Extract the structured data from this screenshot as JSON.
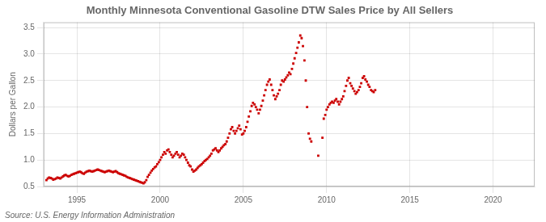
{
  "chart_data": {
    "type": "scatter",
    "title": "Monthly Minnesota Conventional Gasoline DTW Sales Price by All Sellers",
    "ylabel": "Dollars per Gallon",
    "source": "Source: U.S. Energy Information Administration",
    "color": "#cc0000",
    "marker": "square",
    "grid": true,
    "xlim": [
      1993.0,
      2022.5
    ],
    "ylim": [
      0.5,
      3.6
    ],
    "xticks": [
      1995,
      2000,
      2005,
      2010,
      2015,
      2020
    ],
    "yticks": [
      0.5,
      {
        "value": 1.0,
        "label": "1.0"
      },
      1.5,
      {
        "value": 2.0,
        "label": "2.0"
      },
      2.5,
      {
        "value": 3.0,
        "label": "3.0"
      },
      3.5
    ],
    "x": [
      1993.17,
      1993.25,
      1993.33,
      1993.42,
      1993.5,
      1993.58,
      1993.67,
      1993.75,
      1993.83,
      1993.92,
      1994.0,
      1994.08,
      1994.17,
      1994.25,
      1994.33,
      1994.42,
      1994.5,
      1994.58,
      1994.67,
      1994.75,
      1994.83,
      1994.92,
      1995.0,
      1995.08,
      1995.17,
      1995.25,
      1995.33,
      1995.42,
      1995.5,
      1995.58,
      1995.67,
      1995.75,
      1995.83,
      1995.92,
      1996.0,
      1996.08,
      1996.17,
      1996.25,
      1996.33,
      1996.42,
      1996.5,
      1996.58,
      1996.67,
      1996.75,
      1996.83,
      1996.92,
      1997.0,
      1997.08,
      1997.17,
      1997.25,
      1997.33,
      1997.42,
      1997.5,
      1997.58,
      1997.67,
      1997.75,
      1997.83,
      1997.92,
      1998.0,
      1998.08,
      1998.17,
      1998.25,
      1998.33,
      1998.42,
      1998.5,
      1998.58,
      1998.67,
      1998.75,
      1998.83,
      1998.92,
      1999.0,
      1999.08,
      1999.17,
      1999.25,
      1999.33,
      1999.42,
      1999.5,
      1999.58,
      1999.67,
      1999.75,
      1999.83,
      1999.92,
      2000.0,
      2000.08,
      2000.17,
      2000.25,
      2000.33,
      2000.42,
      2000.5,
      2000.58,
      2000.67,
      2000.75,
      2000.83,
      2000.92,
      2001.0,
      2001.08,
      2001.17,
      2001.25,
      2001.33,
      2001.42,
      2001.5,
      2001.58,
      2001.67,
      2001.75,
      2001.83,
      2001.92,
      2002.0,
      2002.08,
      2002.17,
      2002.25,
      2002.33,
      2002.42,
      2002.5,
      2002.58,
      2002.67,
      2002.75,
      2002.83,
      2002.92,
      2003.0,
      2003.08,
      2003.17,
      2003.25,
      2003.33,
      2003.42,
      2003.5,
      2003.58,
      2003.67,
      2003.75,
      2003.83,
      2003.92,
      2004.0,
      2004.08,
      2004.17,
      2004.25,
      2004.33,
      2004.42,
      2004.5,
      2004.58,
      2004.67,
      2004.75,
      2004.83,
      2004.92,
      2005.0,
      2005.08,
      2005.17,
      2005.25,
      2005.33,
      2005.42,
      2005.5,
      2005.58,
      2005.67,
      2005.75,
      2005.83,
      2005.92,
      2006.0,
      2006.08,
      2006.17,
      2006.25,
      2006.33,
      2006.42,
      2006.5,
      2006.58,
      2006.67,
      2006.75,
      2006.83,
      2006.92,
      2007.0,
      2007.08,
      2007.17,
      2007.25,
      2007.33,
      2007.42,
      2007.5,
      2007.58,
      2007.67,
      2007.75,
      2007.83,
      2007.92,
      2008.0,
      2008.08,
      2008.17,
      2008.25,
      2008.33,
      2008.42,
      2008.5,
      2008.58,
      2008.67,
      2008.75,
      2008.83,
      2008.92,
      2009.0,
      2009.08,
      2009.5,
      2009.75,
      2009.83,
      2009.92,
      2010.0,
      2010.08,
      2010.17,
      2010.25,
      2010.33,
      2010.42,
      2010.5,
      2010.58,
      2010.67,
      2010.75,
      2010.83,
      2010.92,
      2011.0,
      2011.08,
      2011.17,
      2011.25,
      2011.33,
      2011.42,
      2011.5,
      2011.58,
      2011.67,
      2011.75,
      2011.83,
      2011.92,
      2012.0,
      2012.08,
      2012.17,
      2012.25,
      2012.33,
      2012.42,
      2012.5,
      2012.58,
      2012.67,
      2012.75,
      2012.83,
      2012.92
    ],
    "values": [
      0.62,
      0.65,
      0.67,
      0.66,
      0.65,
      0.63,
      0.64,
      0.65,
      0.67,
      0.66,
      0.65,
      0.67,
      0.69,
      0.71,
      0.72,
      0.7,
      0.69,
      0.7,
      0.72,
      0.73,
      0.74,
      0.75,
      0.76,
      0.77,
      0.78,
      0.77,
      0.75,
      0.74,
      0.76,
      0.78,
      0.79,
      0.8,
      0.79,
      0.78,
      0.79,
      0.8,
      0.81,
      0.82,
      0.81,
      0.8,
      0.79,
      0.78,
      0.77,
      0.78,
      0.79,
      0.8,
      0.79,
      0.78,
      0.77,
      0.78,
      0.79,
      0.77,
      0.75,
      0.74,
      0.73,
      0.72,
      0.71,
      0.7,
      0.68,
      0.67,
      0.66,
      0.65,
      0.64,
      0.63,
      0.62,
      0.61,
      0.6,
      0.59,
      0.58,
      0.57,
      0.56,
      0.58,
      0.62,
      0.68,
      0.72,
      0.76,
      0.8,
      0.83,
      0.86,
      0.88,
      0.92,
      0.96,
      1.0,
      1.05,
      1.1,
      1.15,
      1.12,
      1.18,
      1.2,
      1.15,
      1.1,
      1.05,
      1.08,
      1.12,
      1.15,
      1.1,
      1.05,
      1.08,
      1.12,
      1.1,
      1.05,
      1.0,
      0.95,
      0.9,
      0.88,
      0.82,
      0.78,
      0.8,
      0.82,
      0.85,
      0.88,
      0.9,
      0.92,
      0.95,
      0.98,
      1.0,
      1.02,
      1.05,
      1.08,
      1.12,
      1.18,
      1.2,
      1.22,
      1.18,
      1.15,
      1.18,
      1.22,
      1.25,
      1.28,
      1.3,
      1.35,
      1.42,
      1.5,
      1.58,
      1.62,
      1.55,
      1.5,
      1.55,
      1.6,
      1.65,
      1.58,
      1.48,
      1.5,
      1.55,
      1.62,
      1.72,
      1.82,
      1.92,
      2.02,
      2.08,
      2.05,
      2.0,
      1.95,
      1.88,
      1.95,
      2.02,
      2.12,
      2.22,
      2.32,
      2.42,
      2.48,
      2.52,
      2.42,
      2.32,
      2.22,
      2.15,
      2.2,
      2.25,
      2.32,
      2.42,
      2.5,
      2.48,
      2.52,
      2.56,
      2.6,
      2.65,
      2.62,
      2.72,
      2.82,
      2.92,
      3.02,
      3.12,
      3.22,
      3.35,
      3.3,
      3.15,
      2.88,
      2.5,
      2.0,
      1.5,
      1.4,
      1.35,
      1.08,
      1.42,
      1.78,
      1.85,
      1.95,
      2.0,
      2.05,
      2.08,
      2.1,
      2.08,
      2.12,
      2.15,
      2.1,
      2.05,
      2.1,
      2.15,
      2.2,
      2.3,
      2.4,
      2.5,
      2.55,
      2.45,
      2.4,
      2.35,
      2.3,
      2.25,
      2.28,
      2.32,
      2.38,
      2.45,
      2.55,
      2.58,
      2.52,
      2.48,
      2.42,
      2.38,
      2.32,
      2.3,
      2.28,
      2.32
    ]
  }
}
